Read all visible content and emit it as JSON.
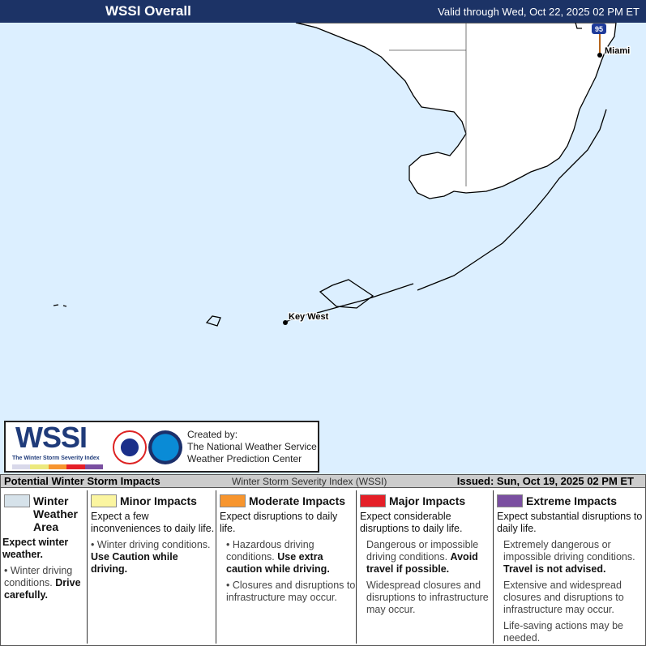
{
  "header": {
    "title": "WSSI Overall",
    "valid": "Valid through Wed, Oct 22, 2025 02 PM ET"
  },
  "map": {
    "labels": {
      "miami": "Miami",
      "key_west": "Key West",
      "interstate": "95"
    },
    "colors": {
      "water": "#dcefff",
      "land": "#ffffff"
    }
  },
  "logo": {
    "wssi": "WSSI",
    "subtitle": "The Winter Storm Severity Index",
    "created_by": "Created by:",
    "org1": "The National Weather Service",
    "org2": "Weather Prediction Center"
  },
  "bar": {
    "title": "Potential Winter Storm Impacts",
    "index": "Winter Storm Severity Index (WSSI)",
    "issued": "Issued: Sun, Oct 19, 2025 02 PM ET"
  },
  "legend": [
    {
      "label": "Winter Weather Area",
      "color": "#d6e2ea",
      "expect": "Expect winter weather.",
      "p1": "• Winter driving conditions.",
      "p1b": "Drive carefully."
    },
    {
      "label": "Minor Impacts",
      "color": "#fbf5a0",
      "expect": "Expect a few inconveniences to daily life.",
      "p1": "• Winter driving conditions.",
      "p1b": "Use Caution while driving."
    },
    {
      "label": "Moderate Impacts",
      "color": "#f7952e",
      "expect": "Expect disruptions to daily life.",
      "p1": "• Hazardous driving conditions.",
      "p1b": "Use extra caution while driving.",
      "p2": "• Closures and disruptions to infrastructure may occur."
    },
    {
      "label": "Major Impacts",
      "color": "#e51f27",
      "expect": "Expect considerable disruptions to daily life.",
      "p1": "Dangerous or impossible driving conditions.",
      "p1b": "Avoid travel if possible.",
      "p2": "Widespread closures and disruptions to infrastructure may occur."
    },
    {
      "label": "Extreme Impacts",
      "color": "#7a4fa0",
      "expect": "Expect substantial disruptions to daily life.",
      "p1": "Extremely dangerous or impossible driving conditions.",
      "p1b": "Travel is not advised.",
      "p2": "Extensive and widespread closures and disruptions to infrastructure may occur.",
      "p3": "Life-saving actions may be needed."
    }
  ]
}
